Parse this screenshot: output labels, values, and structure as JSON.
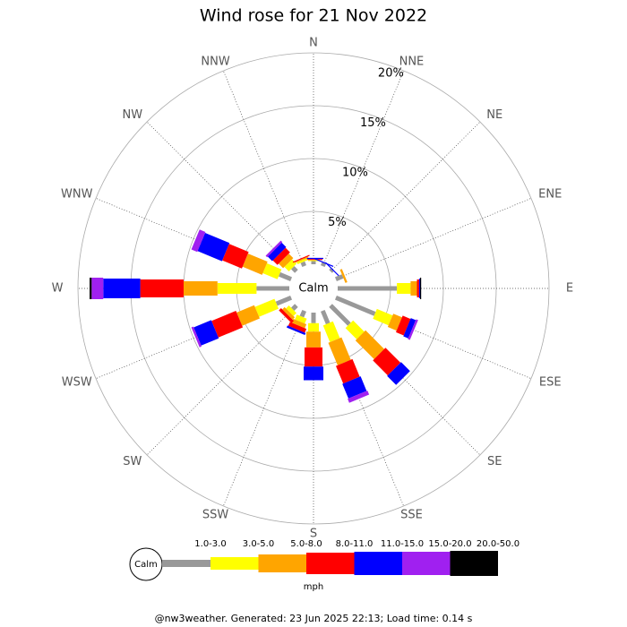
{
  "chart_data": {
    "type": "windrose",
    "title": "Wind rose for 21 Nov 2022",
    "categories": [
      "N",
      "NNE",
      "NE",
      "ENE",
      "E",
      "ESE",
      "SE",
      "SSE",
      "S",
      "SSW",
      "SW",
      "WSW",
      "W",
      "WNW",
      "NW",
      "NNW"
    ],
    "series": [
      {
        "name": "1.0-3.0",
        "color": "#999999",
        "values": [
          0.3,
          0.3,
          0.2,
          0.7,
          5.6,
          4.0,
          2.5,
          1.3,
          1.0,
          0.6,
          0.5,
          1.5,
          3.1,
          1.2,
          0.5,
          0.4
        ]
      },
      {
        "name": "3.0-5.0",
        "color": "#ffff00",
        "values": [
          0.1,
          0,
          0,
          0,
          1.3,
          1.6,
          1.5,
          1.7,
          0.8,
          0.5,
          0.4,
          2.0,
          3.7,
          1.5,
          0.6,
          0.2
        ]
      },
      {
        "name": "5.0-8.0",
        "color": "#ffa500",
        "values": [
          0,
          0,
          0,
          0.2,
          0.6,
          0.9,
          2.5,
          2.3,
          1.5,
          0.4,
          0.3,
          1.8,
          3.2,
          2.0,
          0.6,
          0.1
        ]
      },
      {
        "name": "8.0-11.0",
        "color": "#ff0000",
        "values": [
          0.1,
          0,
          0,
          0,
          0.2,
          0.8,
          2.0,
          1.8,
          1.8,
          0.4,
          0.3,
          2.5,
          4.1,
          2.0,
          0.6,
          0.1
        ]
      },
      {
        "name": "11.0-15.0",
        "color": "#0000ff",
        "values": [
          0.1,
          0.1,
          0.1,
          0,
          0.1,
          0.5,
          1.2,
          1.5,
          1.3,
          0.2,
          0,
          1.8,
          3.5,
          2.5,
          0.6,
          0
        ]
      },
      {
        "name": "15.0-20.0",
        "color": "#a020f0",
        "values": [
          0,
          0,
          0,
          0,
          0,
          0.2,
          0,
          0.4,
          0,
          0,
          0,
          0.2,
          1.1,
          0.6,
          0.2,
          0
        ]
      },
      {
        "name": "20.0-50.0",
        "color": "#000000",
        "values": [
          0,
          0,
          0,
          0,
          0.1,
          0,
          0,
          0,
          0,
          0,
          0,
          0,
          0.2,
          0,
          0,
          0
        ]
      }
    ],
    "rlim": [
      0,
      20
    ],
    "rticks": [
      {
        "value": 5,
        "label": "5%"
      },
      {
        "value": 10,
        "label": "10%"
      },
      {
        "value": 15,
        "label": "15%"
      },
      {
        "value": 20,
        "label": "20%"
      }
    ],
    "calm_label": "Calm",
    "units": "mph",
    "footer": "@nw3weather. Generated: 23 Jun 2025 22:13; Load time: 0.14 s"
  }
}
